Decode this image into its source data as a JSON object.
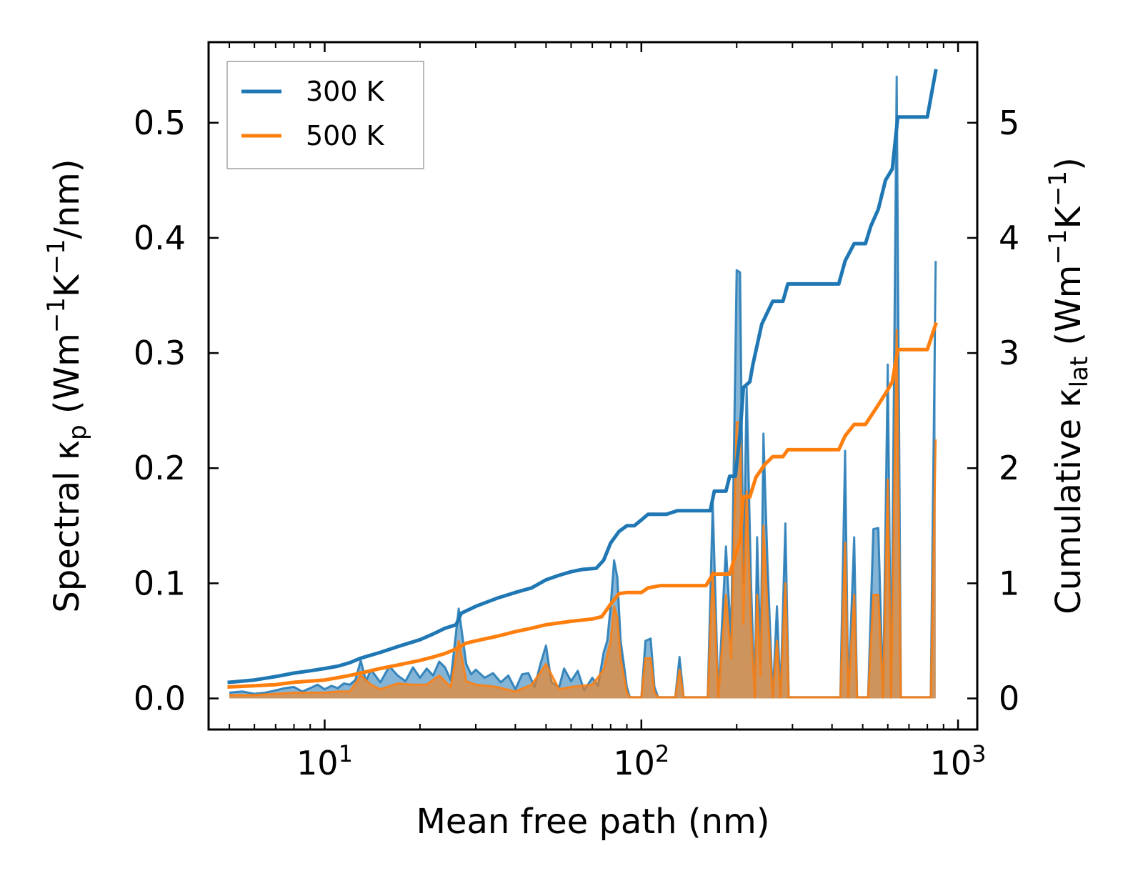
{
  "chart_data": {
    "type": "line",
    "x_scale": "log",
    "xlim": [
      4.3,
      1150
    ],
    "ylim_left": [
      -0.027,
      0.57
    ],
    "ylim_right": [
      -0.27,
      5.7
    ],
    "xlabel": "Mean free path (nm)",
    "ylabel_left": {
      "main": "Spectral κ",
      "sub": "p",
      "units_pre": " (Wm",
      "sup1": "−1",
      "units_mid": "K",
      "sup2": "−1",
      "units_post": "/nm)"
    },
    "ylabel_right": {
      "main": "Cumulative κ",
      "sub": "lat",
      "units_pre": " (Wm",
      "sup1": "−1",
      "units_mid": "K",
      "sup2": "−1",
      "units_post": ")"
    },
    "x_ticks": [
      {
        "value": 10,
        "base": "10",
        "exp": "1"
      },
      {
        "value": 100,
        "base": "10",
        "exp": "2"
      },
      {
        "value": 1000,
        "base": "10",
        "exp": "3"
      }
    ],
    "y_ticks_left": [
      {
        "value": 0.0,
        "label": "0.0"
      },
      {
        "value": 0.1,
        "label": "0.1"
      },
      {
        "value": 0.2,
        "label": "0.2"
      },
      {
        "value": 0.3,
        "label": "0.3"
      },
      {
        "value": 0.4,
        "label": "0.4"
      },
      {
        "value": 0.5,
        "label": "0.5"
      }
    ],
    "y_ticks_right": [
      {
        "value": 0,
        "label": "0"
      },
      {
        "value": 1,
        "label": "1"
      },
      {
        "value": 2,
        "label": "2"
      },
      {
        "value": 3,
        "label": "3"
      },
      {
        "value": 4,
        "label": "4"
      },
      {
        "value": 5,
        "label": "5"
      }
    ],
    "legend": {
      "position": "top-left"
    },
    "series": [
      {
        "name": "300 K",
        "color": "#1f77b4",
        "cumulative": [
          [
            5,
            0.14
          ],
          [
            6,
            0.16
          ],
          [
            7,
            0.19
          ],
          [
            8,
            0.22
          ],
          [
            9,
            0.24
          ],
          [
            10,
            0.26
          ],
          [
            11,
            0.28
          ],
          [
            12,
            0.31
          ],
          [
            13,
            0.35
          ],
          [
            15,
            0.4
          ],
          [
            17,
            0.45
          ],
          [
            20,
            0.51
          ],
          [
            22,
            0.56
          ],
          [
            24,
            0.61
          ],
          [
            26,
            0.64
          ],
          [
            27,
            0.74
          ],
          [
            30,
            0.8
          ],
          [
            35,
            0.87
          ],
          [
            40,
            0.92
          ],
          [
            45,
            0.96
          ],
          [
            50,
            1.03
          ],
          [
            55,
            1.07
          ],
          [
            60,
            1.1
          ],
          [
            65,
            1.12
          ],
          [
            72,
            1.13
          ],
          [
            76,
            1.2
          ],
          [
            80,
            1.35
          ],
          [
            85,
            1.45
          ],
          [
            90,
            1.5
          ],
          [
            95,
            1.5
          ],
          [
            100,
            1.55
          ],
          [
            105,
            1.6
          ],
          [
            120,
            1.6
          ],
          [
            130,
            1.63
          ],
          [
            165,
            1.63
          ],
          [
            170,
            1.8
          ],
          [
            185,
            1.8
          ],
          [
            190,
            1.93
          ],
          [
            198,
            1.93
          ],
          [
            205,
            2.3
          ],
          [
            210,
            2.7
          ],
          [
            220,
            2.75
          ],
          [
            225,
            2.9
          ],
          [
            240,
            3.25
          ],
          [
            260,
            3.45
          ],
          [
            280,
            3.45
          ],
          [
            290,
            3.6
          ],
          [
            420,
            3.6
          ],
          [
            440,
            3.8
          ],
          [
            470,
            3.95
          ],
          [
            510,
            3.95
          ],
          [
            530,
            4.1
          ],
          [
            560,
            4.25
          ],
          [
            590,
            4.5
          ],
          [
            620,
            4.6
          ],
          [
            645,
            5.05
          ],
          [
            800,
            5.05
          ],
          [
            850,
            5.45
          ]
        ],
        "spectral": [
          [
            5,
            0.005
          ],
          [
            5.5,
            0.006
          ],
          [
            6,
            0.004
          ],
          [
            6.5,
            0.005
          ],
          [
            7,
            0.007
          ],
          [
            7.5,
            0.009
          ],
          [
            8,
            0.01
          ],
          [
            8.5,
            0.006
          ],
          [
            9,
            0.009
          ],
          [
            9.5,
            0.012
          ],
          [
            10,
            0.008
          ],
          [
            10.5,
            0.011
          ],
          [
            11,
            0.009
          ],
          [
            11.5,
            0.013
          ],
          [
            12,
            0.012
          ],
          [
            12.5,
            0.016
          ],
          [
            13,
            0.033
          ],
          [
            13.5,
            0.015
          ],
          [
            14,
            0.025
          ],
          [
            15,
            0.014
          ],
          [
            16,
            0.028
          ],
          [
            17,
            0.02
          ],
          [
            18,
            0.015
          ],
          [
            19,
            0.027
          ],
          [
            20,
            0.018
          ],
          [
            21,
            0.026
          ],
          [
            22,
            0.02
          ],
          [
            23,
            0.032
          ],
          [
            24,
            0.027
          ],
          [
            25,
            0.016
          ],
          [
            26.5,
            0.078
          ],
          [
            28,
            0.03
          ],
          [
            29,
            0.021
          ],
          [
            30,
            0.025
          ],
          [
            32,
            0.018
          ],
          [
            34,
            0.022
          ],
          [
            36,
            0.014
          ],
          [
            38,
            0.02
          ],
          [
            40,
            0.008
          ],
          [
            42,
            0.021
          ],
          [
            44,
            0.022
          ],
          [
            46,
            0.01
          ],
          [
            48,
            0.03
          ],
          [
            50,
            0.046
          ],
          [
            52,
            0.014
          ],
          [
            55,
            0.01
          ],
          [
            57,
            0.026
          ],
          [
            60,
            0.015
          ],
          [
            63,
            0.024
          ],
          [
            66,
            0.007
          ],
          [
            70,
            0.018
          ],
          [
            73,
            0.011
          ],
          [
            76,
            0.04
          ],
          [
            78,
            0.05
          ],
          [
            80,
            0.08
          ],
          [
            82,
            0.12
          ],
          [
            84,
            0.105
          ],
          [
            86,
            0.05
          ],
          [
            88,
            0.03
          ],
          [
            90,
            0.01
          ],
          [
            92,
            0.001
          ],
          [
            100,
            0.001
          ],
          [
            103,
            0.05
          ],
          [
            107,
            0.052
          ],
          [
            110,
            0.01
          ],
          [
            113,
            0.001
          ],
          [
            128,
            0.001
          ],
          [
            132,
            0.036
          ],
          [
            136,
            0.001
          ],
          [
            162,
            0.001
          ],
          [
            168,
            0.17
          ],
          [
            175,
            0.001
          ],
          [
            185,
            0.132
          ],
          [
            192,
            0.05
          ],
          [
            200,
            0.372
          ],
          [
            205,
            0.37
          ],
          [
            210,
            0.1
          ],
          [
            215,
            0.27
          ],
          [
            222,
            0.1
          ],
          [
            228,
            0.001
          ],
          [
            232,
            0.14
          ],
          [
            238,
            0.03
          ],
          [
            243,
            0.23
          ],
          [
            250,
            0.12
          ],
          [
            260,
            0.001
          ],
          [
            268,
            0.08
          ],
          [
            275,
            0.001
          ],
          [
            285,
            0.152
          ],
          [
            292,
            0.001
          ],
          [
            425,
            0.001
          ],
          [
            440,
            0.215
          ],
          [
            450,
            0.001
          ],
          [
            470,
            0.14
          ],
          [
            480,
            0.001
          ],
          [
            520,
            0.001
          ],
          [
            540,
            0.147
          ],
          [
            560,
            0.148
          ],
          [
            580,
            0.001
          ],
          [
            600,
            0.29
          ],
          [
            615,
            0.001
          ],
          [
            640,
            0.54
          ],
          [
            660,
            0.001
          ],
          [
            820,
            0.001
          ],
          [
            850,
            0.38
          ]
        ]
      },
      {
        "name": "500 K",
        "color": "#ff7f0e",
        "cumulative": [
          [
            5,
            0.1
          ],
          [
            6,
            0.11
          ],
          [
            7,
            0.12
          ],
          [
            8,
            0.14
          ],
          [
            9,
            0.15
          ],
          [
            10,
            0.16
          ],
          [
            11,
            0.18
          ],
          [
            12,
            0.2
          ],
          [
            13,
            0.22
          ],
          [
            15,
            0.26
          ],
          [
            17,
            0.29
          ],
          [
            20,
            0.33
          ],
          [
            22,
            0.36
          ],
          [
            24,
            0.39
          ],
          [
            26,
            0.43
          ],
          [
            28,
            0.48
          ],
          [
            30,
            0.5
          ],
          [
            35,
            0.54
          ],
          [
            40,
            0.58
          ],
          [
            45,
            0.61
          ],
          [
            50,
            0.64
          ],
          [
            60,
            0.67
          ],
          [
            70,
            0.69
          ],
          [
            75,
            0.71
          ],
          [
            80,
            0.82
          ],
          [
            85,
            0.91
          ],
          [
            90,
            0.92
          ],
          [
            100,
            0.92
          ],
          [
            105,
            0.96
          ],
          [
            115,
            0.98
          ],
          [
            160,
            0.98
          ],
          [
            168,
            1.08
          ],
          [
            190,
            1.08
          ],
          [
            200,
            1.28
          ],
          [
            205,
            1.38
          ],
          [
            210,
            1.75
          ],
          [
            220,
            1.75
          ],
          [
            230,
            1.92
          ],
          [
            245,
            2.03
          ],
          [
            260,
            2.1
          ],
          [
            280,
            2.1
          ],
          [
            290,
            2.16
          ],
          [
            420,
            2.16
          ],
          [
            440,
            2.28
          ],
          [
            470,
            2.38
          ],
          [
            510,
            2.38
          ],
          [
            530,
            2.45
          ],
          [
            560,
            2.55
          ],
          [
            600,
            2.68
          ],
          [
            620,
            2.75
          ],
          [
            645,
            3.03
          ],
          [
            800,
            3.03
          ],
          [
            850,
            3.25
          ]
        ],
        "spectral": [
          [
            5,
            0.003
          ],
          [
            6,
            0.003
          ],
          [
            7,
            0.004
          ],
          [
            8,
            0.005
          ],
          [
            9,
            0.005
          ],
          [
            10,
            0.005
          ],
          [
            11,
            0.006
          ],
          [
            12,
            0.006
          ],
          [
            13,
            0.02
          ],
          [
            14,
            0.012
          ],
          [
            15,
            0.008
          ],
          [
            17,
            0.013
          ],
          [
            19,
            0.012
          ],
          [
            21,
            0.012
          ],
          [
            23,
            0.02
          ],
          [
            25,
            0.01
          ],
          [
            26.5,
            0.05
          ],
          [
            28,
            0.015
          ],
          [
            30,
            0.012
          ],
          [
            35,
            0.01
          ],
          [
            40,
            0.006
          ],
          [
            45,
            0.012
          ],
          [
            50,
            0.03
          ],
          [
            55,
            0.008
          ],
          [
            60,
            0.01
          ],
          [
            70,
            0.012
          ],
          [
            76,
            0.025
          ],
          [
            80,
            0.05
          ],
          [
            82,
            0.08
          ],
          [
            84,
            0.07
          ],
          [
            86,
            0.035
          ],
          [
            90,
            0.005
          ],
          [
            92,
            0.001
          ],
          [
            100,
            0.001
          ],
          [
            103,
            0.035
          ],
          [
            107,
            0.035
          ],
          [
            110,
            0.005
          ],
          [
            113,
            0.001
          ],
          [
            128,
            0.001
          ],
          [
            132,
            0.025
          ],
          [
            136,
            0.001
          ],
          [
            162,
            0.001
          ],
          [
            168,
            0.11
          ],
          [
            175,
            0.001
          ],
          [
            185,
            0.09
          ],
          [
            192,
            0.035
          ],
          [
            200,
            0.24
          ],
          [
            205,
            0.24
          ],
          [
            210,
            0.065
          ],
          [
            215,
            0.18
          ],
          [
            222,
            0.065
          ],
          [
            228,
            0.001
          ],
          [
            232,
            0.09
          ],
          [
            238,
            0.02
          ],
          [
            243,
            0.15
          ],
          [
            250,
            0.08
          ],
          [
            260,
            0.001
          ],
          [
            268,
            0.05
          ],
          [
            275,
            0.001
          ],
          [
            285,
            0.1
          ],
          [
            292,
            0.001
          ],
          [
            425,
            0.001
          ],
          [
            440,
            0.135
          ],
          [
            450,
            0.001
          ],
          [
            470,
            0.09
          ],
          [
            480,
            0.001
          ],
          [
            520,
            0.001
          ],
          [
            540,
            0.09
          ],
          [
            560,
            0.09
          ],
          [
            580,
            0.001
          ],
          [
            600,
            0.19
          ],
          [
            615,
            0.001
          ],
          [
            640,
            0.32
          ],
          [
            660,
            0.001
          ],
          [
            820,
            0.001
          ],
          [
            850,
            0.225
          ]
        ]
      }
    ]
  }
}
